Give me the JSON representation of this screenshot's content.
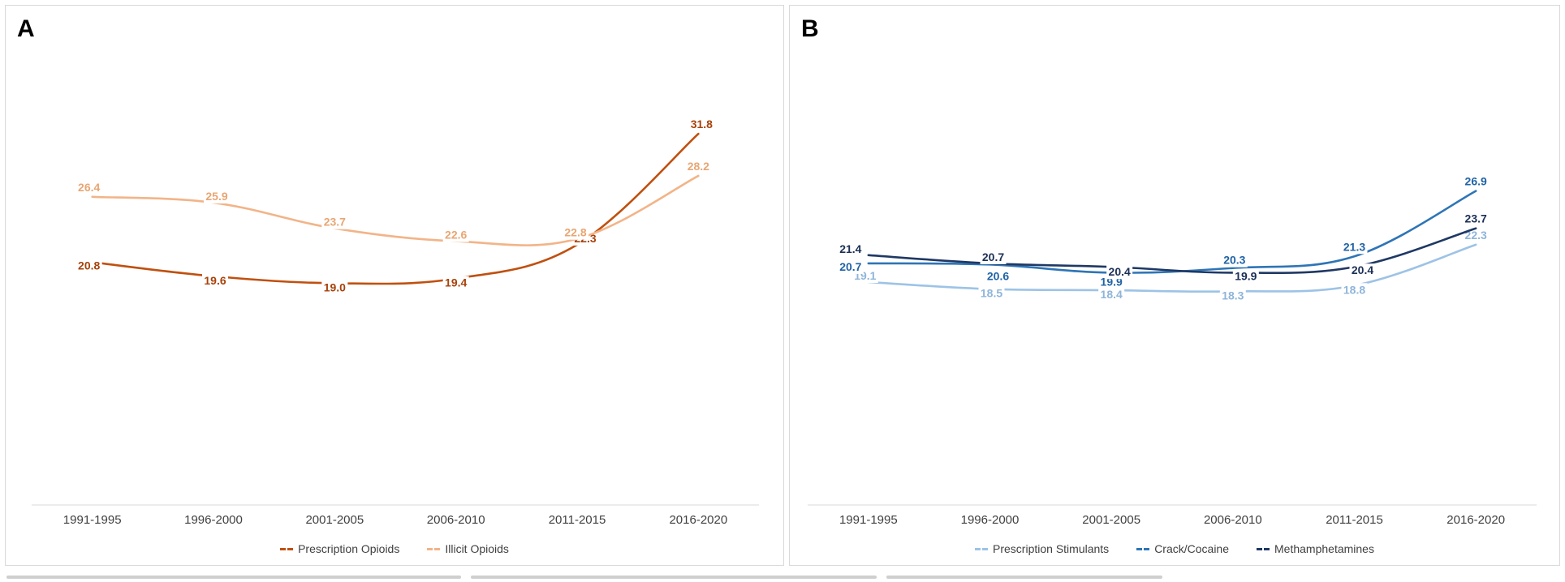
{
  "chart_data": [
    {
      "type": "line",
      "panel_label": "A",
      "categories": [
        "1991-1995",
        "1996-2000",
        "2001-2005",
        "2006-2010",
        "2011-2015",
        "2016-2020"
      ],
      "ylim": [
        0,
        40
      ],
      "legend_position": "bottom-center",
      "series": [
        {
          "name": "Prescription Opioids",
          "values": [
            20.8,
            19.6,
            19.0,
            19.4,
            22.3,
            31.8
          ],
          "color": "#c0500f",
          "label_color": "#a8420a"
        },
        {
          "name": "Illicit Opioids",
          "values": [
            26.4,
            25.9,
            23.7,
            22.6,
            22.8,
            28.2
          ],
          "color": "#f2b488",
          "label_color": "#e8a673"
        }
      ]
    },
    {
      "type": "line",
      "panel_label": "B",
      "categories": [
        "1991-1995",
        "1996-2000",
        "2001-2005",
        "2006-2010",
        "2011-2015",
        "2016-2020"
      ],
      "ylim": [
        0,
        40
      ],
      "legend_position": "bottom-center",
      "series": [
        {
          "name": "Prescription Stimulants",
          "values": [
            19.1,
            18.5,
            18.4,
            18.3,
            18.8,
            22.3
          ],
          "color": "#9dc3e6",
          "label_color": "#8fb5da"
        },
        {
          "name": "Crack/Cocaine",
          "values": [
            20.7,
            20.6,
            19.9,
            20.3,
            21.3,
            26.9
          ],
          "color": "#2e75b6",
          "label_color": "#2063a6"
        },
        {
          "name": "Methamphetamines",
          "values": [
            21.4,
            20.7,
            20.4,
            19.9,
            20.4,
            23.7
          ],
          "color": "#1f3864",
          "label_color": "#1b2f55"
        }
      ]
    }
  ]
}
